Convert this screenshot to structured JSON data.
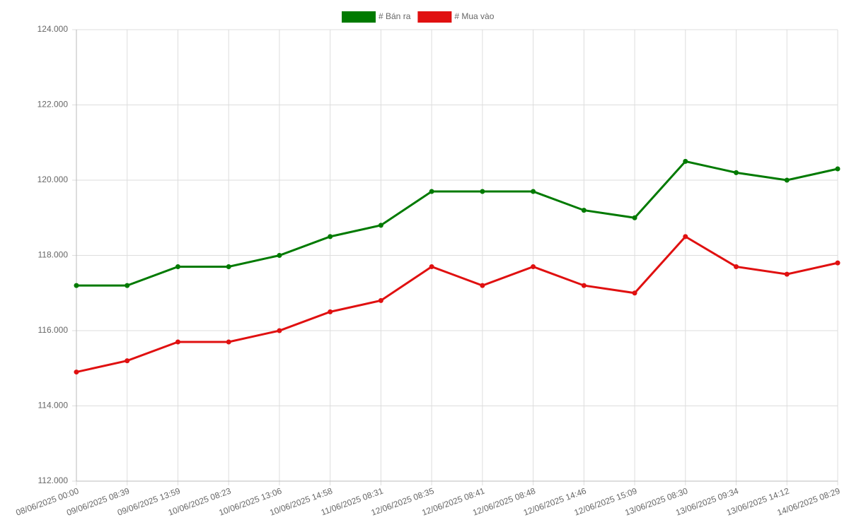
{
  "chart_data": {
    "type": "line",
    "categories": [
      "08/06/2025 00:00",
      "09/06/2025 08:39",
      "09/06/2025 13:59",
      "10/06/2025 08:23",
      "10/06/2025 13:06",
      "10/06/2025 14:58",
      "11/06/2025 08:31",
      "12/06/2025 08:35",
      "12/06/2025 08:41",
      "12/06/2025 08:48",
      "12/06/2025 14:46",
      "12/06/2025 15:09",
      "13/06/2025 08:30",
      "13/06/2025 09:34",
      "13/06/2025 14:12",
      "14/06/2025 08:29"
    ],
    "series": [
      {
        "name": "# Bán ra",
        "color": "#007a00",
        "values": [
          117200,
          117200,
          117700,
          117700,
          118000,
          118500,
          118800,
          119700,
          119700,
          119700,
          119200,
          119000,
          120500,
          120200,
          120000,
          120300
        ]
      },
      {
        "name": "# Mua vào",
        "color": "#e01010",
        "values": [
          114900,
          115200,
          115700,
          115700,
          116000,
          116500,
          116800,
          117700,
          117200,
          117700,
          117200,
          117000,
          118500,
          117700,
          117500,
          117800
        ]
      }
    ],
    "ylim": [
      112000,
      124000
    ],
    "yticks": [
      {
        "value": 112000,
        "label": "112.000"
      },
      {
        "value": 114000,
        "label": "114.000"
      },
      {
        "value": 116000,
        "label": "116.000"
      },
      {
        "value": 118000,
        "label": "118.000"
      },
      {
        "value": 120000,
        "label": "120.000"
      },
      {
        "value": 122000,
        "label": "122.000"
      },
      {
        "value": 124000,
        "label": "124.000"
      }
    ],
    "grid": true,
    "legend": "top"
  }
}
